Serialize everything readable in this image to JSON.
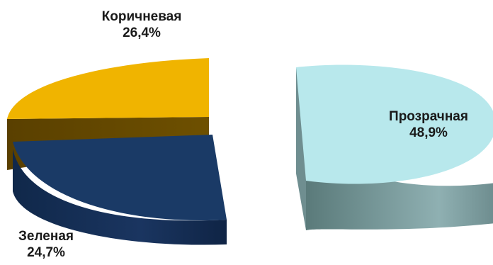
{
  "chart_data": {
    "type": "pie",
    "style": "3d-exploded",
    "title": "",
    "legend": "none",
    "slices": [
      {
        "label": "Прозрачная",
        "value": 48.9,
        "value_label": "48,9%",
        "color": "#b8e8ec"
      },
      {
        "label": "Коричневая",
        "value": 26.4,
        "value_label": "26,4%",
        "color": "#f0b400"
      },
      {
        "label": "Зеленая",
        "value": 24.7,
        "value_label": "24,7%",
        "color": "#1a3a66"
      }
    ]
  }
}
